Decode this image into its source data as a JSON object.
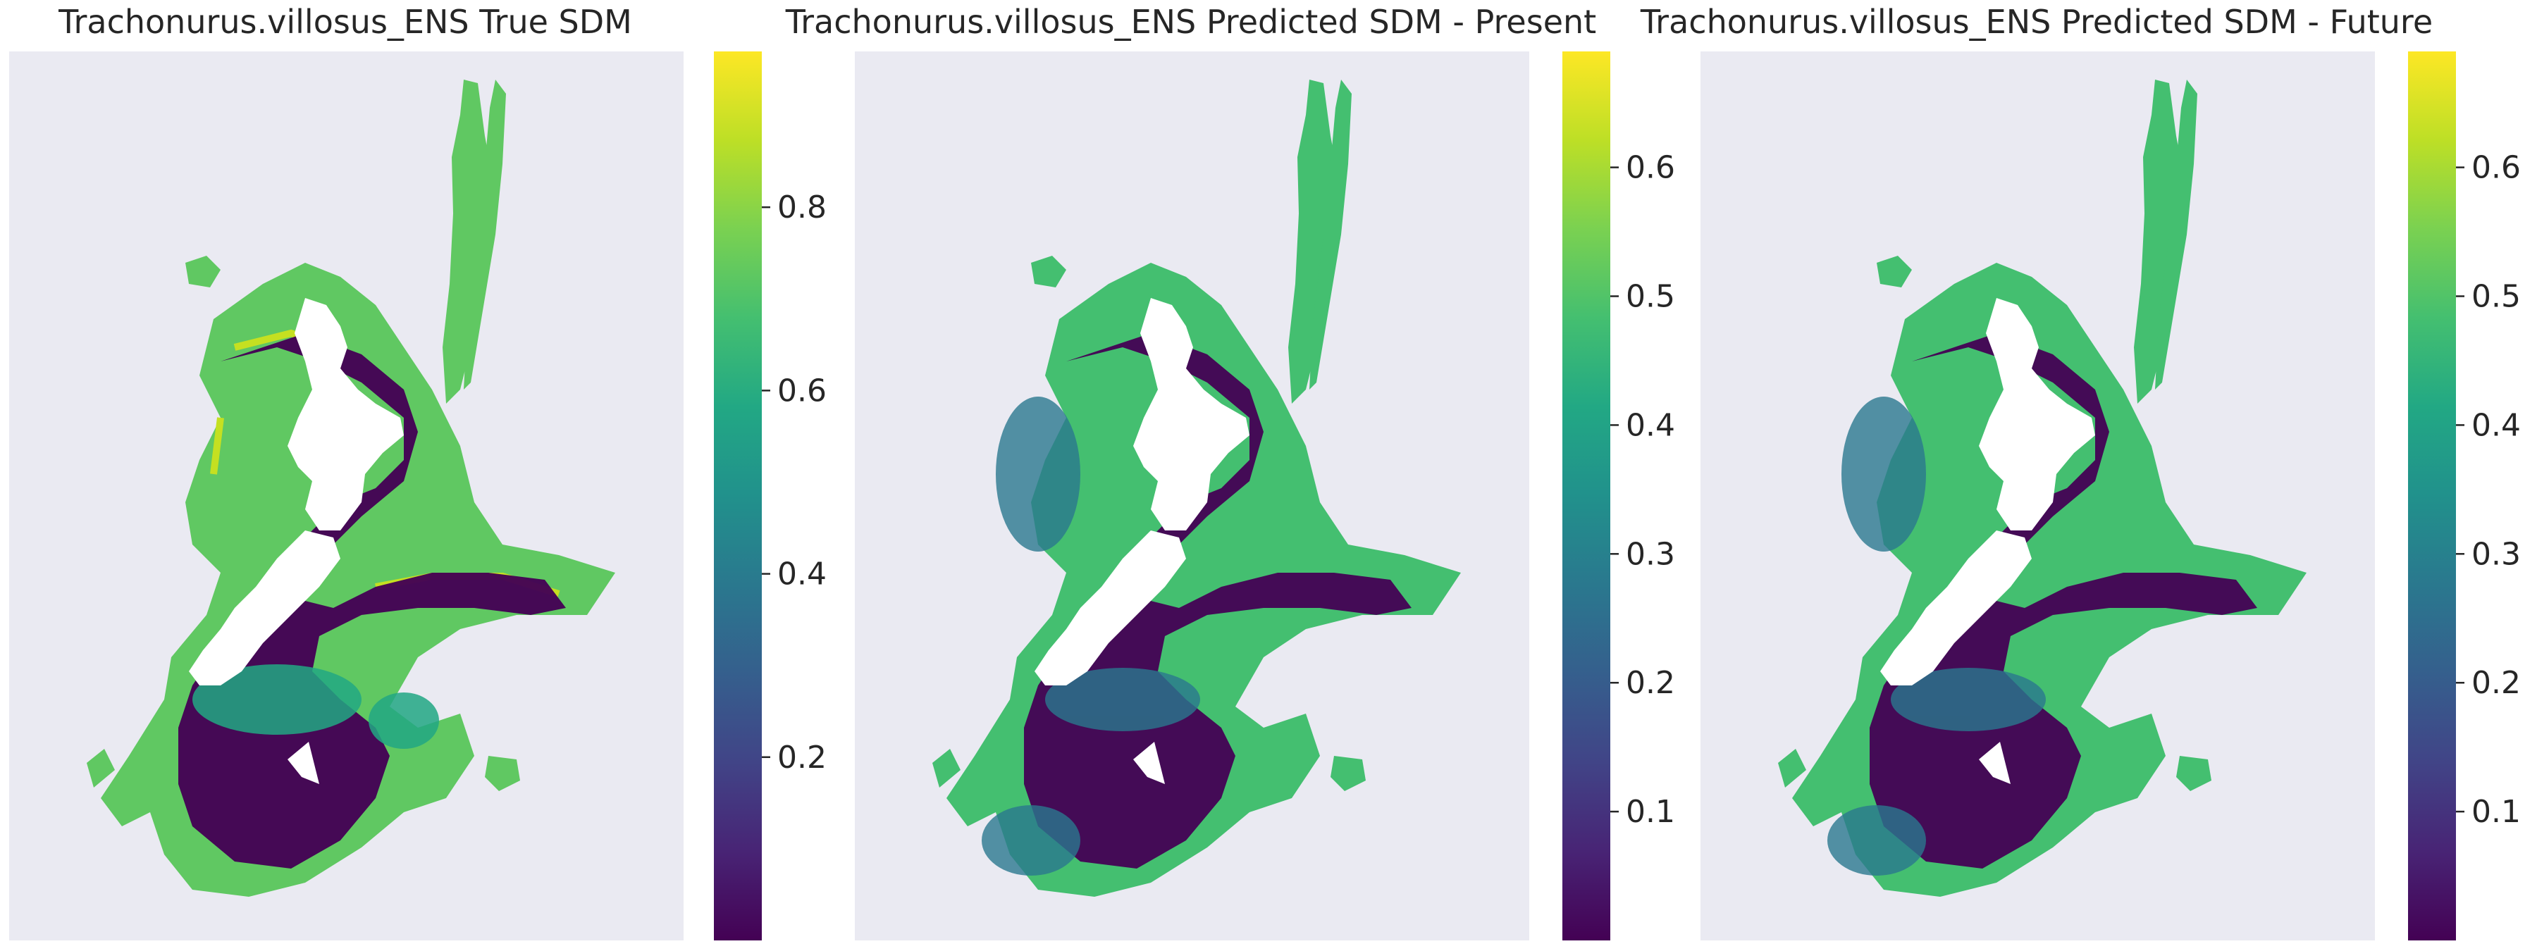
{
  "chart_data": [
    {
      "type": "heatmap",
      "title": "Trachonurus.villosus_ENS True SDM",
      "colormap": "viridis",
      "colorbar": {
        "vmin": 0.0,
        "vmax": 0.97,
        "ticks": [
          0.2,
          0.4,
          0.6,
          0.8
        ],
        "tick_labels": [
          "0.2",
          "0.4",
          "0.6",
          "0.8"
        ]
      },
      "grid": false,
      "axes_visible": false
    },
    {
      "type": "heatmap",
      "title": "Trachonurus.villosus_ENS Predicted SDM - Present",
      "colormap": "viridis",
      "colorbar": {
        "vmin": 0.0,
        "vmax": 0.69,
        "ticks": [
          0.1,
          0.2,
          0.3,
          0.4,
          0.5,
          0.6
        ],
        "tick_labels": [
          "0.1",
          "0.2",
          "0.3",
          "0.4",
          "0.5",
          "0.6"
        ]
      },
      "grid": false,
      "axes_visible": false
    },
    {
      "type": "heatmap",
      "title": "Trachonurus.villosus_ENS Predicted SDM - Future",
      "colormap": "viridis",
      "colorbar": {
        "vmin": 0.0,
        "vmax": 0.69,
        "ticks": [
          0.1,
          0.2,
          0.3,
          0.4,
          0.5,
          0.6
        ],
        "tick_labels": [
          "0.1",
          "0.2",
          "0.3",
          "0.4",
          "0.5",
          "0.6"
        ]
      },
      "grid": false,
      "axes_visible": false
    }
  ]
}
